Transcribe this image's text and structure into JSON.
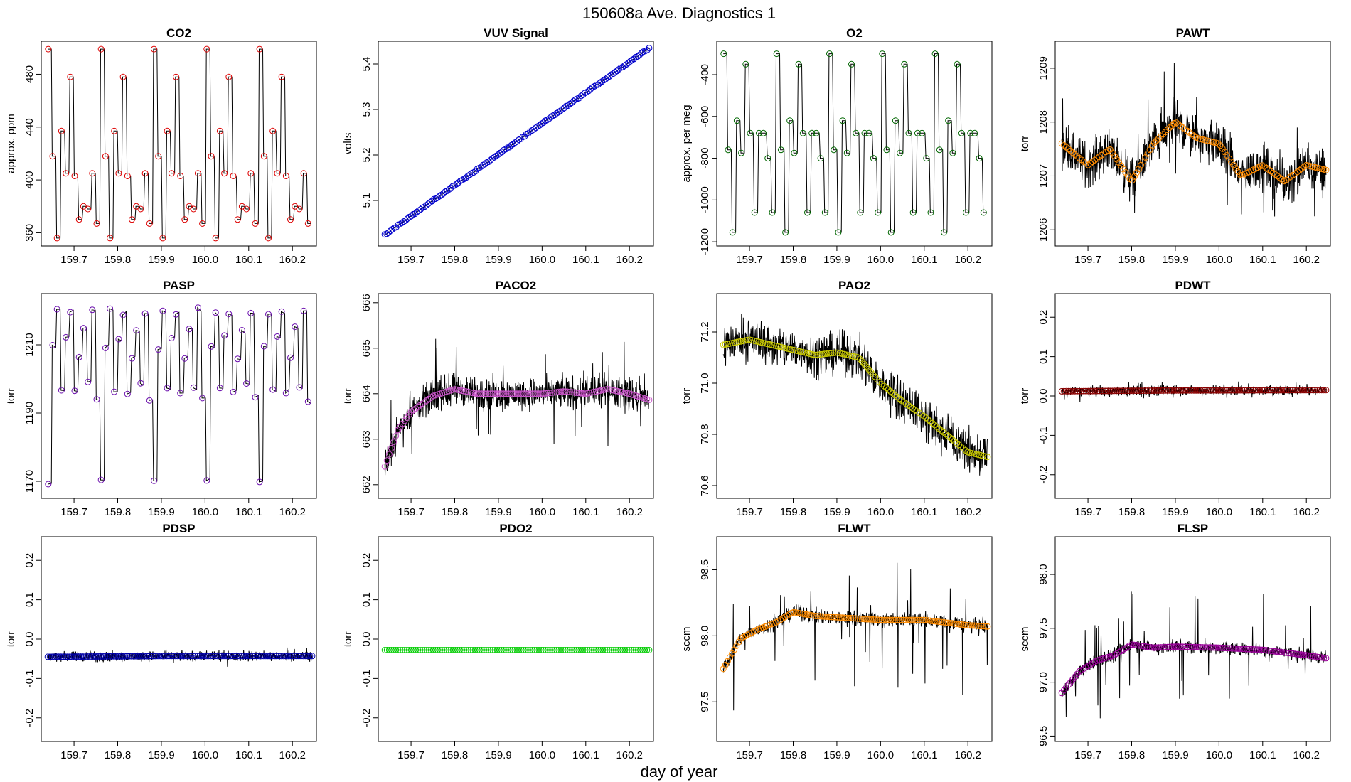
{
  "figure": {
    "title": "150608a   Ave. Diagnostics 1",
    "xlabel": "day of year"
  },
  "chart_data": [
    {
      "type": "line",
      "title": "CO2",
      "ylabel": "approx. ppm",
      "color": "#dd0000",
      "xlim": [
        159.625,
        160.255
      ],
      "ylim": [
        350,
        505
      ],
      "yticks": [
        360,
        400,
        440,
        480
      ],
      "xticks": [
        159.7,
        159.8,
        159.9,
        160.0,
        160.1,
        160.2
      ],
      "pattern": "steps",
      "levels": [
        499,
        418,
        356,
        437,
        405,
        478,
        403,
        370,
        380,
        378,
        405,
        367
      ],
      "spread": 0
    },
    {
      "type": "line",
      "title": "VUV Signal",
      "ylabel": "volts",
      "color": "#0000cc",
      "xlim": [
        159.625,
        160.255
      ],
      "ylim": [
        5.0,
        5.45
      ],
      "yticks": [
        5.1,
        5.2,
        5.3,
        5.4
      ],
      "xticks": [
        159.7,
        159.8,
        159.9,
        160.0,
        160.1,
        160.2
      ],
      "pattern": "linear",
      "start": 5.025,
      "end": 5.435,
      "spread": 0.002
    },
    {
      "type": "line",
      "title": "O2",
      "ylabel": "approx. per meg",
      "color": "#006600",
      "xlim": [
        159.625,
        160.255
      ],
      "ylim": [
        -1220,
        -240
      ],
      "yticks": [
        -1200,
        -1000,
        -800,
        -600,
        -400
      ],
      "xticks": [
        159.7,
        159.8,
        159.9,
        160.0,
        160.1,
        160.2
      ],
      "pattern": "steps",
      "levels": [
        -300,
        -760,
        -1155,
        -620,
        -775,
        -350,
        -680,
        -1060,
        -680,
        -680,
        -800,
        -1060
      ],
      "spread": 0
    },
    {
      "type": "line",
      "title": "PAWT",
      "ylabel": "torr",
      "color": "#ff8c00",
      "xlim": [
        159.625,
        160.255
      ],
      "ylim": [
        1205.7,
        1209.5
      ],
      "yticks": [
        1206,
        1207,
        1208,
        1209
      ],
      "xticks": [
        159.7,
        159.8,
        159.9,
        160.0,
        160.1,
        160.2
      ],
      "pattern": "noisy",
      "keys": [
        [
          159.64,
          1207.6
        ],
        [
          159.7,
          1207.2
        ],
        [
          159.75,
          1207.5
        ],
        [
          159.8,
          1206.9
        ],
        [
          159.85,
          1207.6
        ],
        [
          159.9,
          1208.0
        ],
        [
          159.95,
          1207.7
        ],
        [
          160.0,
          1207.6
        ],
        [
          160.05,
          1207.0
        ],
        [
          160.1,
          1207.2
        ],
        [
          160.15,
          1206.9
        ],
        [
          160.2,
          1207.2
        ],
        [
          160.25,
          1207.1
        ]
      ],
      "spread": 0.6,
      "spikes": 0.9
    },
    {
      "type": "line",
      "title": "PASP",
      "ylabel": "torr",
      "color": "#6a0dad",
      "xlim": [
        159.625,
        160.255
      ],
      "ylim": [
        1165,
        1225
      ],
      "yticks": [
        1170,
        1190,
        1210
      ],
      "xticks": [
        159.7,
        159.8,
        159.9,
        160.0,
        160.1,
        160.2
      ],
      "pattern": "steps",
      "levels": [
        1170,
        1209,
        1220,
        1197,
        1212,
        1219,
        1196,
        1206,
        1215,
        1198,
        1220,
        1194
      ],
      "spread": 1.5
    },
    {
      "type": "line",
      "title": "PACO2",
      "ylabel": "torr",
      "color": "#cc55cc",
      "xlim": [
        159.625,
        160.255
      ],
      "ylim": [
        661.7,
        666.2
      ],
      "yticks": [
        662,
        663,
        664,
        665,
        666
      ],
      "xticks": [
        159.7,
        159.8,
        159.9,
        160.0,
        160.1,
        160.2
      ],
      "pattern": "noisy",
      "keys": [
        [
          159.64,
          662.4
        ],
        [
          159.67,
          663.2
        ],
        [
          159.7,
          663.6
        ],
        [
          159.75,
          663.95
        ],
        [
          159.8,
          664.1
        ],
        [
          159.85,
          664.0
        ],
        [
          159.9,
          664.0
        ],
        [
          159.95,
          664.0
        ],
        [
          160.0,
          664.0
        ],
        [
          160.05,
          664.05
        ],
        [
          160.1,
          664.0
        ],
        [
          160.15,
          664.1
        ],
        [
          160.2,
          664.0
        ],
        [
          160.25,
          663.85
        ]
      ],
      "spread": 0.5,
      "spikes": 1.1
    },
    {
      "type": "line",
      "title": "PAO2",
      "ylabel": "torr",
      "color": "#cccc00",
      "xlim": [
        159.625,
        160.255
      ],
      "ylim": [
        70.55,
        71.35
      ],
      "yticks": [
        70.6,
        70.8,
        71.0,
        71.2
      ],
      "xticks": [
        159.7,
        159.8,
        159.9,
        160.0,
        160.1,
        160.2
      ],
      "pattern": "noisy",
      "keys": [
        [
          159.64,
          71.15
        ],
        [
          159.7,
          71.17
        ],
        [
          159.75,
          71.15
        ],
        [
          159.8,
          71.13
        ],
        [
          159.85,
          71.11
        ],
        [
          159.9,
          71.12
        ],
        [
          159.95,
          71.1
        ],
        [
          160.0,
          71.0
        ],
        [
          160.05,
          70.93
        ],
        [
          160.1,
          70.87
        ],
        [
          160.15,
          70.8
        ],
        [
          160.2,
          70.73
        ],
        [
          160.25,
          70.71
        ]
      ],
      "spread": 0.12,
      "spikes": 0.05
    },
    {
      "type": "line",
      "title": "PDWT",
      "ylabel": "torr",
      "color": "#8b0000",
      "xlim": [
        159.625,
        160.255
      ],
      "ylim": [
        -0.26,
        0.26
      ],
      "yticks": [
        -0.2,
        -0.1,
        0.0,
        0.1,
        0.2
      ],
      "xticks": [
        159.7,
        159.8,
        159.9,
        160.0,
        160.1,
        160.2
      ],
      "pattern": "noisy",
      "keys": [
        [
          159.64,
          0.012
        ],
        [
          159.9,
          0.014
        ],
        [
          160.25,
          0.015
        ]
      ],
      "spread": 0.018,
      "spikes": 0.02
    },
    {
      "type": "line",
      "title": "PDSP",
      "ylabel": "torr",
      "color": "#0000aa",
      "xlim": [
        159.625,
        160.255
      ],
      "ylim": [
        -0.26,
        0.26
      ],
      "yticks": [
        -0.2,
        -0.1,
        0.0,
        0.1,
        0.2
      ],
      "xticks": [
        159.7,
        159.8,
        159.9,
        160.0,
        160.1,
        160.2
      ],
      "pattern": "noisy",
      "keys": [
        [
          159.64,
          -0.045
        ],
        [
          159.9,
          -0.043
        ],
        [
          160.25,
          -0.043
        ]
      ],
      "spread": 0.018,
      "spikes": 0.015
    },
    {
      "type": "line",
      "title": "PDO2",
      "ylabel": "torr",
      "color": "#00cc00",
      "xlim": [
        159.625,
        160.255
      ],
      "ylim": [
        -0.26,
        0.26
      ],
      "yticks": [
        -0.2,
        -0.1,
        0.0,
        0.1,
        0.2
      ],
      "xticks": [
        159.7,
        159.8,
        159.9,
        160.0,
        160.1,
        160.2
      ],
      "pattern": "flat",
      "value": -0.028,
      "spread": 0
    },
    {
      "type": "line",
      "title": "FLWT",
      "ylabel": "sccm",
      "color": "#ff8c00",
      "xlim": [
        159.625,
        160.255
      ],
      "ylim": [
        97.2,
        98.75
      ],
      "yticks": [
        97.5,
        98.0,
        98.5
      ],
      "xticks": [
        159.7,
        159.8,
        159.9,
        160.0,
        160.1,
        160.2
      ],
      "pattern": "noisy",
      "keys": [
        [
          159.64,
          97.75
        ],
        [
          159.68,
          97.98
        ],
        [
          159.72,
          98.05
        ],
        [
          159.76,
          98.1
        ],
        [
          159.8,
          98.18
        ],
        [
          159.85,
          98.15
        ],
        [
          159.9,
          98.14
        ],
        [
          160.0,
          98.12
        ],
        [
          160.1,
          98.12
        ],
        [
          160.2,
          98.08
        ],
        [
          160.25,
          98.07
        ]
      ],
      "spread": 0.08,
      "spikes": 0.5
    },
    {
      "type": "line",
      "title": "FLSP",
      "ylabel": "sccm",
      "color": "#990099",
      "xlim": [
        159.625,
        160.255
      ],
      "ylim": [
        96.45,
        98.35
      ],
      "yticks": [
        96.5,
        97.0,
        97.5,
        98.0
      ],
      "xticks": [
        159.7,
        159.8,
        159.9,
        160.0,
        160.1,
        160.2
      ],
      "pattern": "noisy",
      "keys": [
        [
          159.64,
          96.9
        ],
        [
          159.68,
          97.1
        ],
        [
          159.72,
          97.2
        ],
        [
          159.76,
          97.25
        ],
        [
          159.8,
          97.35
        ],
        [
          159.85,
          97.32
        ],
        [
          159.9,
          97.33
        ],
        [
          160.0,
          97.32
        ],
        [
          160.1,
          97.3
        ],
        [
          160.2,
          97.25
        ],
        [
          160.25,
          97.22
        ]
      ],
      "spread": 0.09,
      "spikes": 0.55
    }
  ]
}
